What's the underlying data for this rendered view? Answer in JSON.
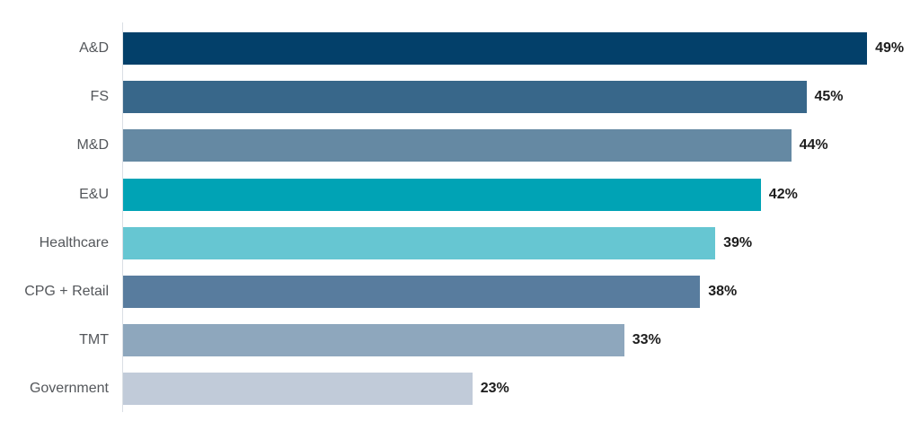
{
  "chart_data": {
    "type": "bar",
    "orientation": "horizontal",
    "title": "",
    "xlabel": "",
    "ylabel": "",
    "categories": [
      "A&D",
      "FS",
      "M&D",
      "E&U",
      "Healthcare",
      "CPG + Retail",
      "TMT",
      "Government"
    ],
    "values": [
      49,
      45,
      44,
      42,
      39,
      38,
      33,
      23
    ],
    "value_labels": [
      "49%",
      "45%",
      "44%",
      "42%",
      "39%",
      "38%",
      "33%",
      "23%"
    ],
    "bar_colors": [
      "#03406a",
      "#38678a",
      "#6589a3",
      "#00a3b5",
      "#66c6d2",
      "#587c9e",
      "#8ea7bd",
      "#c1cbd9"
    ],
    "xlim": [
      0,
      52.4
    ],
    "grid": false,
    "legend": null,
    "axis_line_color": "#dadfe4",
    "category_label_color": "#54575b",
    "value_label_color": "#1d1d1d",
    "background_color": "#ffffff"
  }
}
